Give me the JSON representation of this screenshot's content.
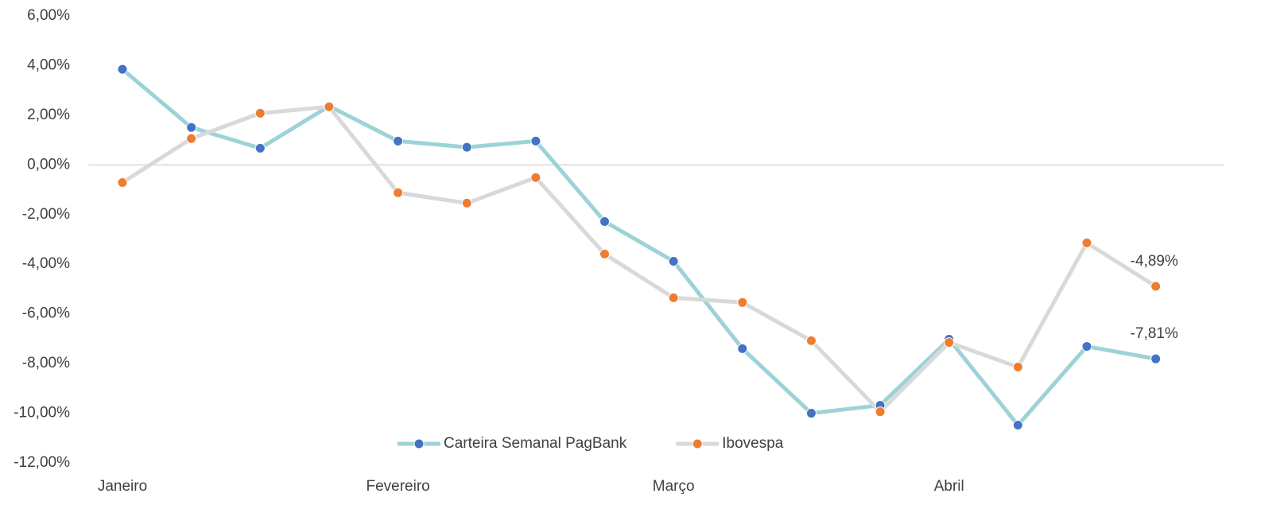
{
  "chart_data": {
    "type": "line",
    "categories": [
      "Janeiro",
      null,
      null,
      null,
      "Fevereiro",
      null,
      null,
      null,
      "Março",
      null,
      null,
      null,
      "Abril",
      null,
      null,
      null
    ],
    "series": [
      {
        "name": "Carteira Semanal PagBank",
        "color": "#9dd3d6",
        "marker_color": "#4472c4",
        "values": [
          3.85,
          1.51,
          0.67,
          2.37,
          0.96,
          0.71,
          0.96,
          -2.28,
          -3.88,
          -7.4,
          -10.0,
          -9.68,
          -7.02,
          -10.48,
          -7.31,
          -7.81
        ],
        "value_labels": [
          null,
          null,
          null,
          null,
          null,
          null,
          null,
          null,
          null,
          null,
          null,
          null,
          null,
          null,
          null,
          "-7,81%"
        ]
      },
      {
        "name": "Ibovespa",
        "color": "#d9d9d9",
        "marker_color": "#ed7d31",
        "values": [
          -0.71,
          1.06,
          2.08,
          2.34,
          -1.12,
          -1.54,
          -0.51,
          -3.59,
          -5.35,
          -5.54,
          -7.08,
          -9.94,
          -7.15,
          -8.14,
          -3.14,
          -4.89
        ],
        "value_labels": [
          null,
          null,
          null,
          null,
          null,
          null,
          null,
          null,
          null,
          null,
          null,
          null,
          null,
          null,
          null,
          "-4,89%"
        ]
      }
    ],
    "ylim": [
      -12,
      6
    ],
    "yticks": [
      {
        "value": -12,
        "label": "-12,00%"
      },
      {
        "value": -10,
        "label": "-10,00%"
      },
      {
        "value": -8,
        "label": "-8,00%"
      },
      {
        "value": -6,
        "label": "-6,00%"
      },
      {
        "value": -4,
        "label": "-4,00%"
      },
      {
        "value": -2,
        "label": "-2,00%"
      },
      {
        "value": 0,
        "label": "0,00%"
      },
      {
        "value": 2,
        "label": "2,00%"
      },
      {
        "value": 4,
        "label": "4,00%"
      },
      {
        "value": 6,
        "label": "6,00%"
      }
    ],
    "legend": "bottom"
  }
}
